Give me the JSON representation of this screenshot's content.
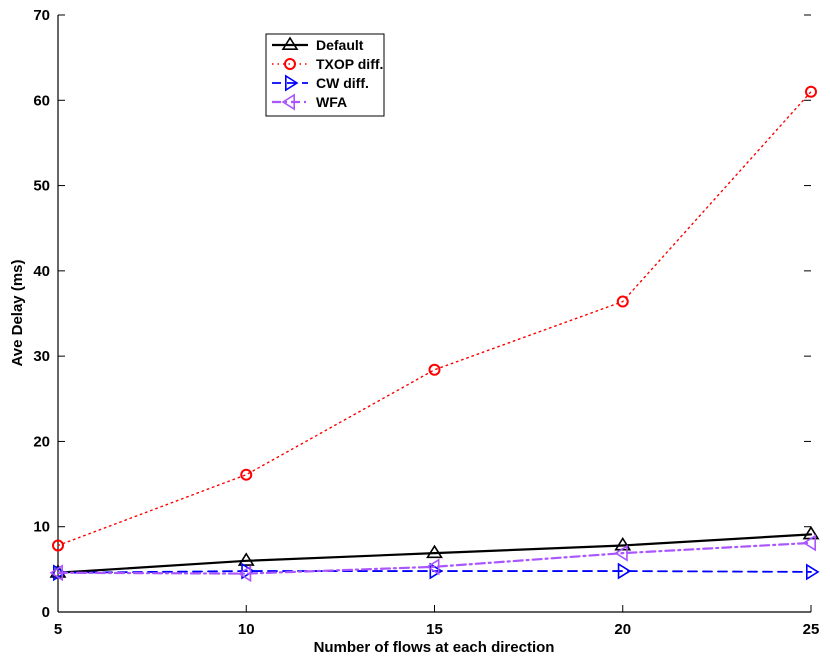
{
  "chart_data": {
    "type": "line",
    "title": "",
    "xlabel": "Number of flows at each direction",
    "ylabel": "Ave Delay (ms)",
    "xlim": [
      5,
      25
    ],
    "ylim": [
      0,
      70
    ],
    "xticks": [
      5,
      10,
      15,
      20,
      25
    ],
    "yticks": [
      0,
      10,
      20,
      30,
      40,
      50,
      60,
      70
    ],
    "grid": false,
    "legend_position": "top-center",
    "x": [
      5,
      10,
      15,
      20,
      25
    ],
    "series": [
      {
        "name": "Default",
        "values": [
          4.6,
          6.0,
          6.9,
          7.8,
          9.1
        ],
        "color": "#000000",
        "marker": "triangle-up",
        "dash": "solid"
      },
      {
        "name": "TXOP diff.",
        "values": [
          7.8,
          16.1,
          28.4,
          36.4,
          61.0
        ],
        "color": "#ff0000",
        "marker": "circle",
        "dash": "dotted"
      },
      {
        "name": "CW diff.",
        "values": [
          4.6,
          4.8,
          4.8,
          4.8,
          4.7
        ],
        "color": "#0000ff",
        "marker": "triangle-right",
        "dash": "dashed"
      },
      {
        "name": "WFA",
        "values": [
          4.6,
          4.5,
          5.3,
          6.9,
          8.1
        ],
        "color": "#aa55ff",
        "marker": "triangle-left",
        "dash": "dashdot"
      }
    ]
  }
}
